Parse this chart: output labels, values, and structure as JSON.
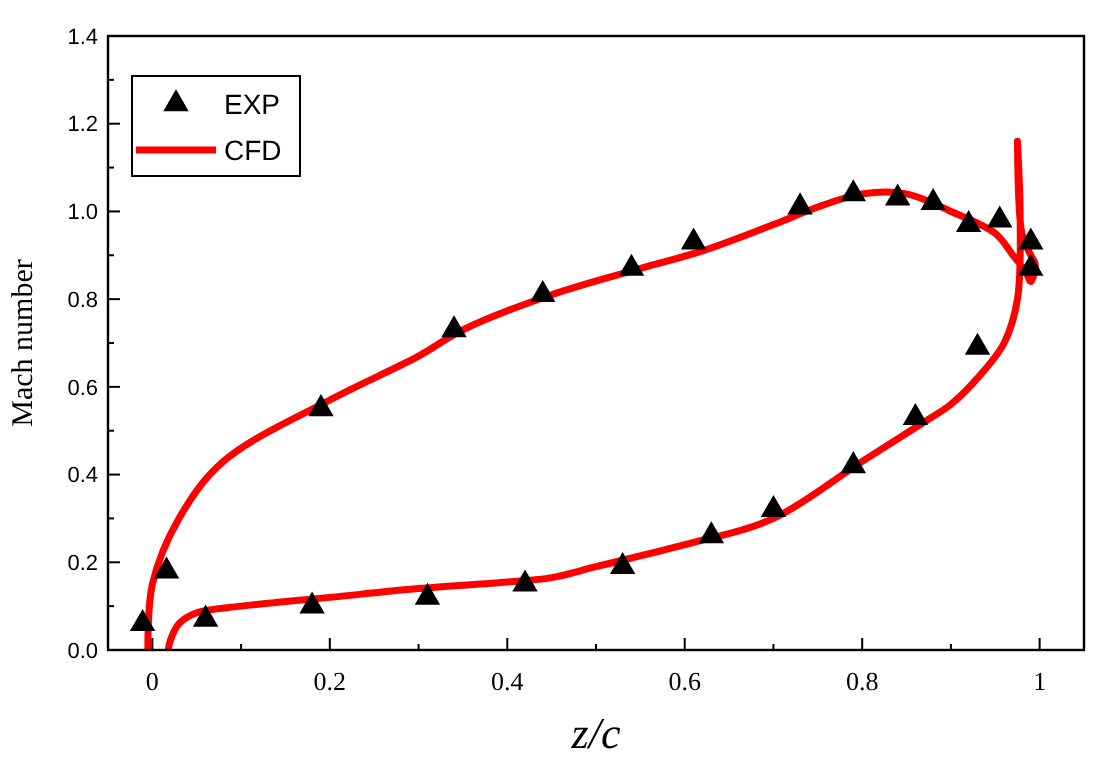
{
  "chart_data": {
    "type": "scatter",
    "xlabel": "z/c",
    "ylabel": "Mach number",
    "xlim": [
      -0.05,
      1.05
    ],
    "ylim": [
      0,
      1.4
    ],
    "xticks": [
      0,
      0.2,
      0.4,
      0.6,
      0.8,
      1
    ],
    "yticks": [
      {
        "value": 0,
        "label": "0.0"
      },
      0.2,
      0.4,
      0.6,
      0.8,
      {
        "value": 1,
        "label": "1.0"
      },
      1.2,
      1.4
    ],
    "legend": "top left",
    "grid": false,
    "series": [
      {
        "name": "EXP",
        "marker": "triangle",
        "color": "#000000",
        "x": [
          -0.011,
          0.016,
          0.06,
          0.18,
          0.31,
          0.42,
          0.53,
          0.63,
          0.7,
          0.79,
          0.86,
          0.93,
          0.19,
          0.34,
          0.44,
          0.54,
          0.61,
          0.73,
          0.79,
          0.84,
          0.88,
          0.92,
          0.955,
          0.99,
          0.99
        ],
        "values": [
          0.06,
          0.18,
          0.07,
          0.1,
          0.12,
          0.15,
          0.19,
          0.26,
          0.32,
          0.42,
          0.53,
          0.69,
          0.55,
          0.73,
          0.81,
          0.87,
          0.93,
          1.01,
          1.04,
          1.03,
          1.02,
          0.97,
          0.98,
          0.93,
          0.87
        ]
      },
      {
        "name": "CFD",
        "type": "line",
        "line_style": "solid",
        "marker": "none",
        "color": "#ff0000",
        "x": [
          -0.005,
          0.0,
          0.03,
          0.08,
          0.2,
          0.3,
          0.35,
          0.45,
          0.55,
          0.62,
          0.7,
          0.75,
          0.8,
          0.85,
          0.9,
          0.95,
          0.97,
          0.985,
          0.99,
          0.995,
          0.99,
          0.98,
          0.975,
          0.978,
          0.975,
          0.96,
          0.93,
          0.9,
          0.87,
          0.8,
          0.7,
          0.6,
          0.5,
          0.45,
          0.4,
          0.3,
          0.2,
          0.1,
          0.05,
          0.03,
          0.02,
          0.018
        ],
        "values": [
          0,
          0.15,
          0.3,
          0.43,
          0.57,
          0.67,
          0.73,
          0.81,
          0.87,
          0.91,
          0.97,
          1.01,
          1.04,
          1.04,
          1.0,
          0.95,
          0.9,
          0.86,
          0.84,
          0.88,
          0.9,
          0.95,
          1.16,
          1.0,
          0.8,
          0.7,
          0.62,
          0.56,
          0.52,
          0.43,
          0.3,
          0.24,
          0.19,
          0.165,
          0.155,
          0.14,
          0.12,
          0.1,
          0.085,
          0.06,
          0.02,
          0
        ]
      }
    ]
  }
}
